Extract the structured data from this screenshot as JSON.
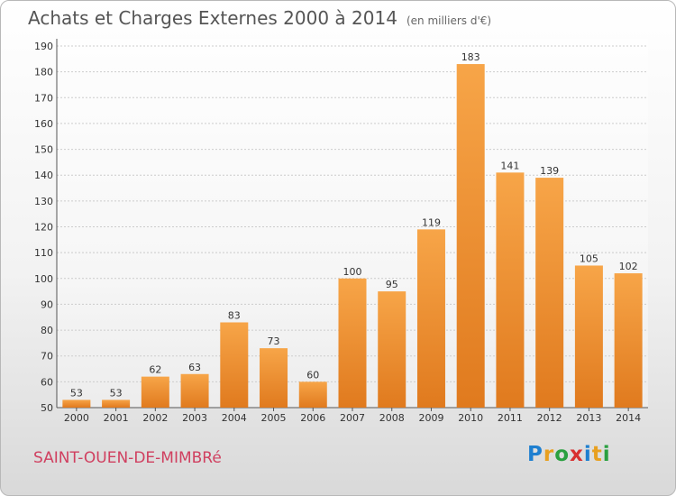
{
  "header": {
    "title": "Achats et Charges Externes 2000 à 2014",
    "unit": "(en milliers d'€)"
  },
  "footer": {
    "commune": "SAINT-OUEN-DE-MIMBRé",
    "logo_letters": [
      "P",
      "r",
      "o",
      "x",
      "i",
      "t",
      "i"
    ],
    "logo_colors": [
      "#1e7fd0",
      "#e8a020",
      "#2aa040",
      "#d83030",
      "#1e7fd0",
      "#e8a020",
      "#2aa040"
    ]
  },
  "colors": {
    "bar_light": "#f7a548",
    "bar_dark": "#e07a1e",
    "grid": "#cccccc",
    "axis": "#555555"
  },
  "chart_data": {
    "type": "bar",
    "categories": [
      "2000",
      "2001",
      "2002",
      "2003",
      "2004",
      "2005",
      "2006",
      "2007",
      "2008",
      "2009",
      "2010",
      "2011",
      "2012",
      "2013",
      "2014"
    ],
    "values": [
      53,
      53,
      62,
      63,
      83,
      73,
      60,
      100,
      95,
      119,
      183,
      141,
      139,
      105,
      102
    ],
    "title": "Achats et Charges Externes 2000 à 2014",
    "xlabel": "",
    "ylabel": "",
    "ylim": [
      50,
      190
    ],
    "yticks": [
      50,
      60,
      70,
      80,
      90,
      100,
      110,
      120,
      130,
      140,
      150,
      160,
      170,
      180,
      190
    ],
    "grid": true,
    "legend": "none"
  }
}
